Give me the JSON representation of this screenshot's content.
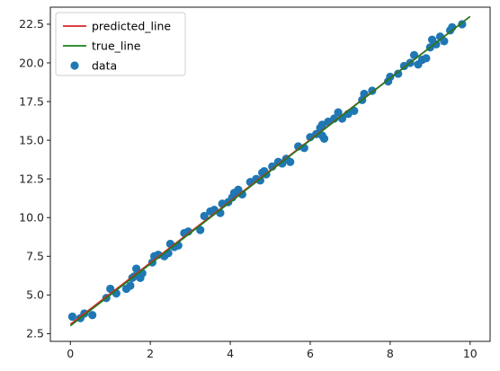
{
  "chart_data": {
    "type": "scatter",
    "title": "",
    "xlabel": "",
    "ylabel": "",
    "xlim": [
      -0.5,
      10.5
    ],
    "ylim": [
      2.0,
      23.6
    ],
    "xticks": [
      0,
      2,
      4,
      6,
      8,
      10
    ],
    "xtick_labels": [
      "0",
      "2",
      "4",
      "6",
      "8",
      "10"
    ],
    "yticks": [
      2.5,
      5.0,
      7.5,
      10.0,
      12.5,
      15.0,
      17.5,
      20.0,
      22.5
    ],
    "ytick_labels": [
      "2.5",
      "5.0",
      "7.5",
      "10.0",
      "12.5",
      "15.0",
      "17.5",
      "20.0",
      "22.5"
    ],
    "grid": false,
    "legend_position": "top-left",
    "series": [
      {
        "name": "predicted_line",
        "kind": "line",
        "color": "#d62728",
        "x": [
          0,
          10
        ],
        "y": [
          3.1,
          23.0
        ]
      },
      {
        "name": "true_line",
        "kind": "line",
        "color": "#1a7f1a",
        "x": [
          0,
          10
        ],
        "y": [
          3.0,
          23.0
        ]
      },
      {
        "name": "data",
        "kind": "scatter",
        "color": "#1f77b4",
        "points": [
          [
            0.05,
            3.6
          ],
          [
            0.25,
            3.5
          ],
          [
            0.35,
            3.8
          ],
          [
            0.55,
            3.7
          ],
          [
            0.9,
            4.8
          ],
          [
            1.0,
            5.4
          ],
          [
            1.15,
            5.1
          ],
          [
            1.4,
            5.4
          ],
          [
            1.5,
            5.6
          ],
          [
            1.55,
            6.1
          ],
          [
            1.6,
            6.2
          ],
          [
            1.65,
            6.7
          ],
          [
            1.75,
            6.1
          ],
          [
            1.8,
            6.4
          ],
          [
            2.05,
            7.1
          ],
          [
            2.1,
            7.5
          ],
          [
            2.2,
            7.6
          ],
          [
            2.35,
            7.5
          ],
          [
            2.45,
            7.7
          ],
          [
            2.5,
            8.3
          ],
          [
            2.6,
            8.1
          ],
          [
            2.7,
            8.2
          ],
          [
            2.85,
            9.0
          ],
          [
            2.95,
            9.1
          ],
          [
            3.25,
            9.2
          ],
          [
            3.35,
            10.1
          ],
          [
            3.5,
            10.4
          ],
          [
            3.6,
            10.5
          ],
          [
            3.75,
            10.3
          ],
          [
            3.8,
            10.9
          ],
          [
            3.95,
            11.0
          ],
          [
            4.05,
            11.3
          ],
          [
            4.1,
            11.6
          ],
          [
            4.2,
            11.8
          ],
          [
            4.3,
            11.5
          ],
          [
            4.5,
            12.3
          ],
          [
            4.65,
            12.5
          ],
          [
            4.75,
            12.4
          ],
          [
            4.8,
            12.9
          ],
          [
            4.85,
            13.0
          ],
          [
            4.9,
            12.8
          ],
          [
            5.05,
            13.3
          ],
          [
            5.2,
            13.6
          ],
          [
            5.3,
            13.5
          ],
          [
            5.4,
            13.8
          ],
          [
            5.5,
            13.6
          ],
          [
            5.7,
            14.6
          ],
          [
            5.85,
            14.5
          ],
          [
            6.0,
            15.2
          ],
          [
            6.15,
            15.4
          ],
          [
            6.25,
            15.8
          ],
          [
            6.3,
            16.0
          ],
          [
            6.3,
            15.3
          ],
          [
            6.35,
            15.1
          ],
          [
            6.45,
            16.2
          ],
          [
            6.6,
            16.4
          ],
          [
            6.7,
            16.8
          ],
          [
            6.8,
            16.4
          ],
          [
            6.95,
            16.7
          ],
          [
            7.1,
            16.9
          ],
          [
            7.3,
            17.6
          ],
          [
            7.35,
            18.0
          ],
          [
            7.55,
            18.2
          ],
          [
            7.95,
            18.8
          ],
          [
            8.0,
            19.1
          ],
          [
            8.2,
            19.3
          ],
          [
            8.35,
            19.8
          ],
          [
            8.5,
            20.0
          ],
          [
            8.6,
            20.5
          ],
          [
            8.7,
            19.9
          ],
          [
            8.8,
            20.2
          ],
          [
            8.9,
            20.3
          ],
          [
            9.0,
            21.0
          ],
          [
            9.05,
            21.5
          ],
          [
            9.15,
            21.2
          ],
          [
            9.25,
            21.7
          ],
          [
            9.35,
            21.4
          ],
          [
            9.5,
            22.1
          ],
          [
            9.55,
            22.3
          ],
          [
            9.8,
            22.5
          ]
        ]
      }
    ]
  }
}
